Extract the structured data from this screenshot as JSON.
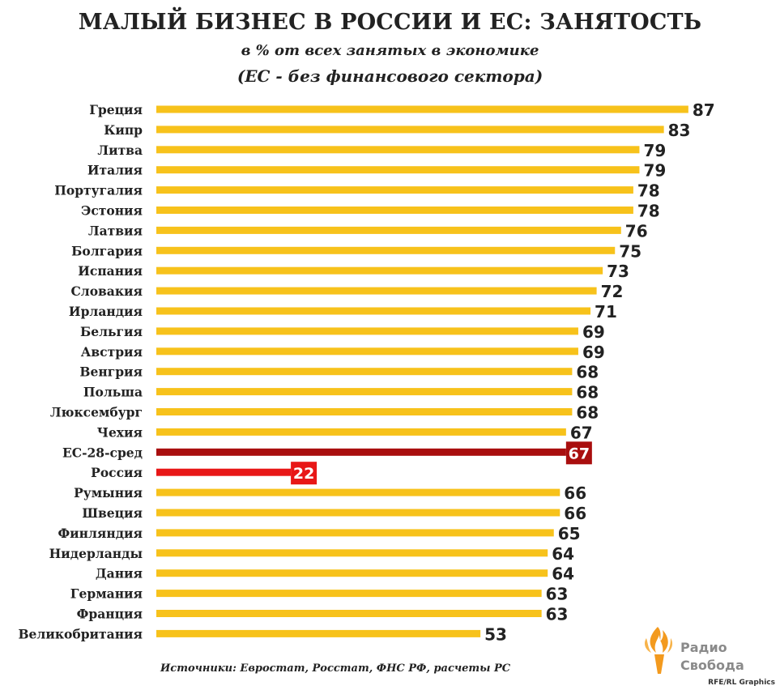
{
  "title": "МАЛЫЙ БИЗНЕС В РОССИИ И ЕС: ЗАНЯТОСТЬ",
  "subtitle": "в %  от всех занятых в экономике",
  "subtitle2": "(ЕС - без финансового сектора)",
  "source": "Источники: Евростат, Росстат, ФНС РФ, расчеты РС",
  "logo": {
    "line1": "Радио",
    "line2": "Свобода",
    "icon": "torch-icon"
  },
  "credit": "RFE/RL Graphics",
  "colors": {
    "bar": "#F7C21B",
    "eu_avg": "#A90E0E",
    "russia": "#E81717",
    "label_text": "#222222",
    "logo_orange": "#F39A1E"
  },
  "chart_data": {
    "type": "bar",
    "orientation": "horizontal",
    "title": "МАЛЫЙ БИЗНЕС В РОССИИ И ЕС: ЗАНЯТОСТЬ",
    "subtitle": "в %  от всех занятых в экономике",
    "xlim": [
      0,
      100
    ],
    "grid": false,
    "categories": [
      "Греция",
      "Кипр",
      "Литва",
      "Италия",
      "Португалия",
      "Эстония",
      "Латвия",
      "Болгария",
      "Испания",
      "Словакия",
      "Ирландия",
      "Бельгия",
      "Австрия",
      "Венгрия",
      "Польша",
      "Люксембург",
      "Чехия",
      "ЕС-28-сред",
      "Россия",
      "Румыния",
      "Швеция",
      "Финляндия",
      "Нидерланды",
      "Дания",
      "Германия",
      "Франция",
      "Великобритания"
    ],
    "values": [
      87,
      83,
      79,
      79,
      78,
      78,
      76,
      75,
      73,
      72,
      71,
      69,
      69,
      68,
      68,
      68,
      67,
      67,
      22,
      66,
      66,
      65,
      64,
      64,
      63,
      63,
      53
    ],
    "highlight": {
      "ЕС-28-сред": "eu_avg",
      "Россия": "russia"
    }
  }
}
